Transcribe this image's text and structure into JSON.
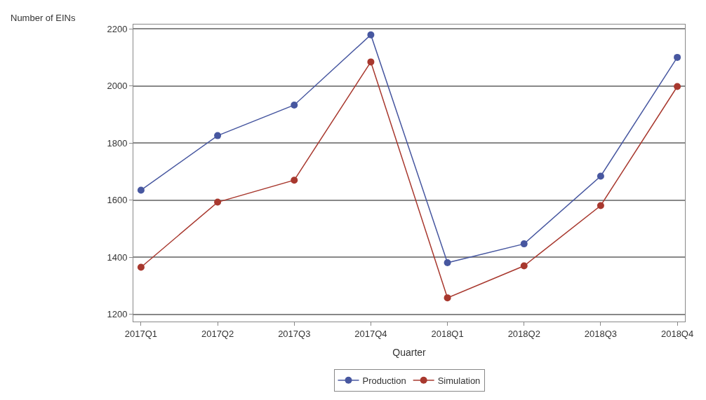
{
  "chart_data": {
    "type": "line",
    "xlabel": "Quarter",
    "ylabel": "Number of EINs",
    "categories": [
      "2017Q1",
      "2017Q2",
      "2017Q3",
      "2017Q4",
      "2018Q1",
      "2018Q2",
      "2018Q3",
      "2018Q4"
    ],
    "series": [
      {
        "name": "Production",
        "color": "#4757a0",
        "values": [
          1635,
          1826,
          1933,
          2179,
          1381,
          1447,
          1684,
          2100
        ]
      },
      {
        "name": "Simulation",
        "color": "#a8382e",
        "values": [
          1365,
          1593,
          1670,
          2084,
          1258,
          1370,
          1581,
          1998
        ]
      }
    ],
    "ylim": [
      1175,
      2215
    ],
    "yticks": [
      1200,
      1400,
      1600,
      1800,
      2000,
      2200
    ],
    "grid": "y",
    "legend": "bottom",
    "marker": "circle",
    "line_style": "solid"
  }
}
